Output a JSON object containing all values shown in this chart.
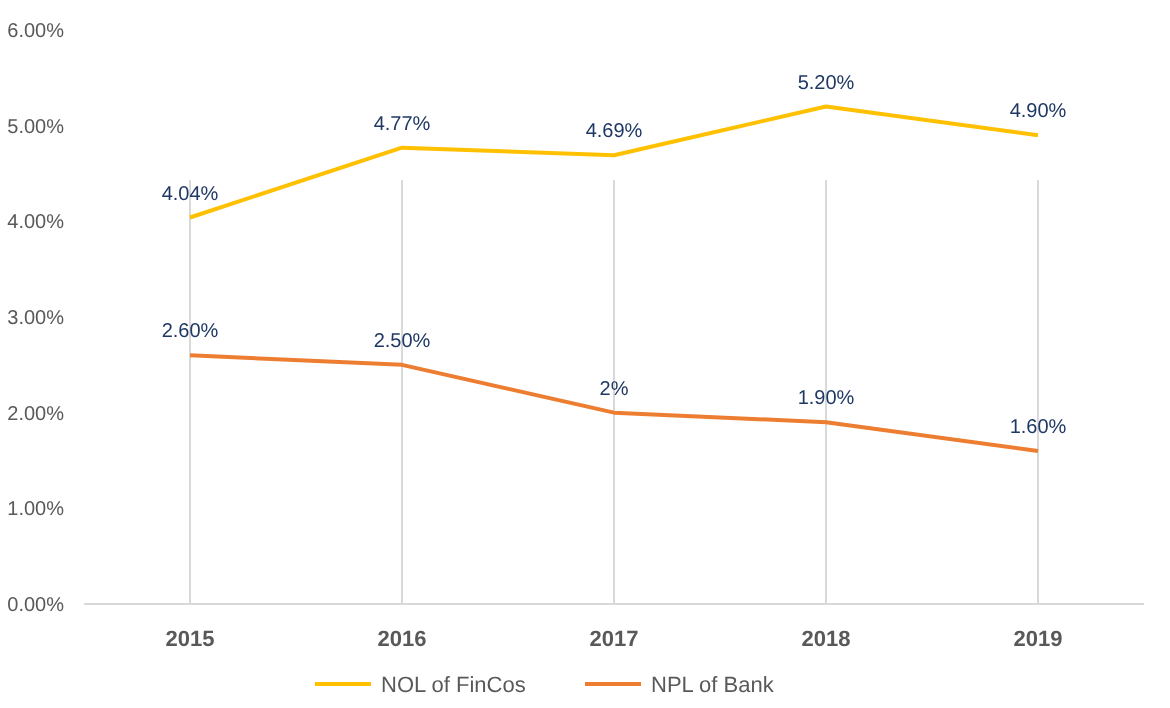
{
  "chart_data": {
    "type": "line",
    "categories": [
      "2015",
      "2016",
      "2017",
      "2018",
      "2019"
    ],
    "series": [
      {
        "name": "NOL of FinCos",
        "color": "#ffc000",
        "values": [
          4.04,
          4.77,
          4.69,
          5.2,
          4.9
        ],
        "value_labels": [
          "4.04%",
          "4.77%",
          "4.69%",
          "5.20%",
          "4.90%"
        ]
      },
      {
        "name": "NPL of Bank",
        "color": "#ed7d31",
        "values": [
          2.6,
          2.5,
          2.0,
          1.9,
          1.6
        ],
        "value_labels": [
          "2.60%",
          "2.50%",
          "2%",
          "1.90%",
          "1.60%"
        ]
      }
    ],
    "ylim": [
      0,
      6
    ],
    "yticks": [
      {
        "value": 0,
        "label": "0.00%"
      },
      {
        "value": 1,
        "label": "1.00%"
      },
      {
        "value": 2,
        "label": "2.00%"
      },
      {
        "value": 3,
        "label": "3.00%"
      },
      {
        "value": 4,
        "label": "4.00%"
      },
      {
        "value": 5,
        "label": "5.00%"
      },
      {
        "value": 6,
        "label": "6.00%"
      }
    ],
    "grid": "x",
    "legend": "bottom",
    "marker": "none",
    "line_style": "solid"
  }
}
